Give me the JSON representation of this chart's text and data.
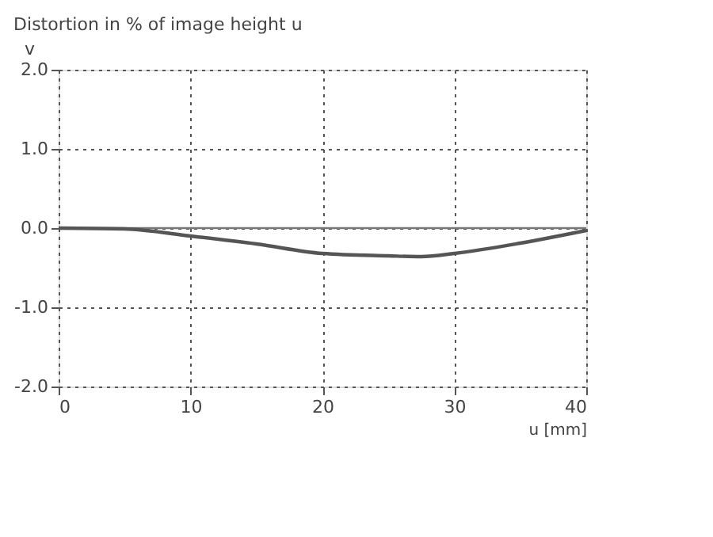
{
  "chart_data": {
    "type": "line",
    "title": "Distortion in % of image height u",
    "ylabel": "v",
    "xlabel": "u [mm]",
    "x": [
      0,
      5,
      10,
      15,
      20,
      25,
      27.5,
      30,
      35,
      40
    ],
    "series": [
      {
        "color": "#555555",
        "values": [
          0,
          -0.01,
          -0.1,
          -0.2,
          -0.32,
          -0.35,
          -0.36,
          -0.32,
          -0.19,
          -0.03
        ]
      }
    ],
    "xlim": [
      0,
      40
    ],
    "xticks": [
      0,
      10,
      20,
      30,
      40
    ],
    "ylim": [
      -2,
      2
    ],
    "yticks": [
      {
        "value": -2,
        "label": "-2.0"
      },
      {
        "value": -1,
        "label": "-1.0"
      },
      {
        "value": 0,
        "label": "0.0"
      },
      {
        "value": 1,
        "label": "1.0"
      },
      {
        "value": 2,
        "label": "2.0"
      }
    ],
    "ref_lines": [
      {
        "axis": "y",
        "value": 0,
        "color": "#777777",
        "line_style": "solid"
      }
    ],
    "grid": true,
    "marker": "none",
    "line_style": "solid"
  }
}
